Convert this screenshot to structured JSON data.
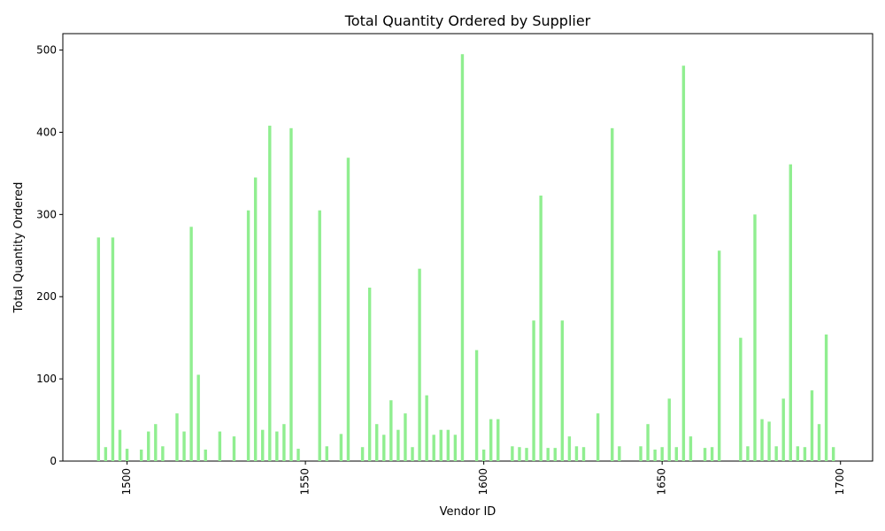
{
  "chart_data": {
    "type": "bar",
    "title": "Total Quantity Ordered by Supplier",
    "xlabel": "Vendor ID",
    "ylabel": "Total Quantity Ordered",
    "xlim": [
      1482,
      1709
    ],
    "ylim": [
      0,
      520
    ],
    "xticks": [
      1500,
      1550,
      1600,
      1650,
      1700
    ],
    "yticks": [
      0,
      100,
      200,
      300,
      400,
      500
    ],
    "bar_color": "#90ee90",
    "grid": false,
    "x": [
      1492,
      1494,
      1496,
      1498,
      1500,
      1504,
      1506,
      1508,
      1510,
      1514,
      1516,
      1518,
      1520,
      1522,
      1526,
      1530,
      1534,
      1536,
      1538,
      1540,
      1542,
      1544,
      1546,
      1548,
      1554,
      1556,
      1560,
      1562,
      1566,
      1568,
      1570,
      1572,
      1574,
      1576,
      1578,
      1580,
      1582,
      1584,
      1586,
      1588,
      1590,
      1592,
      1594,
      1598,
      1600,
      1602,
      1604,
      1608,
      1610,
      1612,
      1614,
      1616,
      1618,
      1620,
      1622,
      1624,
      1626,
      1628,
      1632,
      1636,
      1638,
      1644,
      1646,
      1648,
      1650,
      1652,
      1654,
      1656,
      1658,
      1662,
      1664,
      1666,
      1672,
      1674,
      1676,
      1678,
      1680,
      1682,
      1684,
      1686,
      1688,
      1690,
      1692,
      1694,
      1696,
      1698
    ],
    "values": [
      272,
      17,
      272,
      38,
      15,
      14,
      36,
      45,
      18,
      58,
      36,
      285,
      105,
      14,
      36,
      30,
      305,
      345,
      38,
      408,
      36,
      45,
      405,
      15,
      305,
      18,
      33,
      369,
      17,
      211,
      45,
      32,
      74,
      38,
      58,
      17,
      234,
      80,
      32,
      38,
      38,
      32,
      495,
      135,
      14,
      51,
      51,
      18,
      17,
      16,
      171,
      323,
      16,
      16,
      171,
      30,
      18,
      17,
      58,
      405,
      18,
      18,
      45,
      14,
      17,
      76,
      17,
      481,
      30,
      16,
      17,
      256,
      150,
      18,
      300,
      51,
      48,
      18,
      76,
      361,
      18,
      17,
      86,
      45,
      154,
      17
    ]
  }
}
